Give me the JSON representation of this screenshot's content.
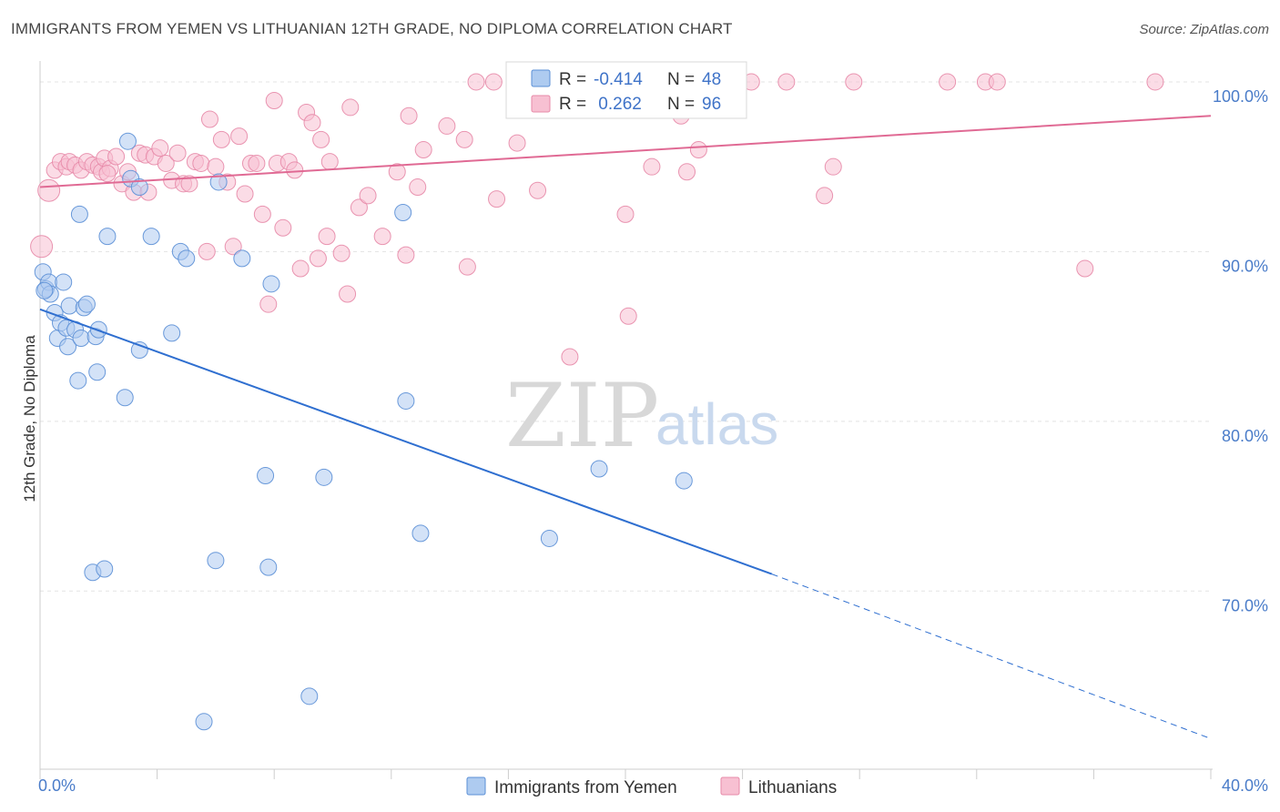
{
  "title": "IMMIGRANTS FROM YEMEN VS LITHUANIAN 12TH GRADE, NO DIPLOMA CORRELATION CHART",
  "source": "Source: ZipAtlas.com",
  "watermark": {
    "zip": "ZIP",
    "atlas": "atlas"
  },
  "colors": {
    "blue_fill": "#aecbf0",
    "blue_stroke": "#5b8fd6",
    "blue_line": "#2f6fd0",
    "pink_fill": "#f7c0d2",
    "pink_stroke": "#e78aa8",
    "pink_line": "#e06a94",
    "tick_text": "#4a7cc9",
    "grid": "#e3e3e3"
  },
  "legend_box": {
    "rows": [
      {
        "r_label": "R =",
        "r_value": "-0.414",
        "n_label": "N =",
        "n_value": "48",
        "color": "blue"
      },
      {
        "r_label": "R =",
        "r_value": " 0.262",
        "n_label": "N =",
        "n_value": "96",
        "color": "pink"
      }
    ]
  },
  "bottom_legend": [
    {
      "label": "Immigrants from Yemen",
      "color": "blue"
    },
    {
      "label": "Lithuanians",
      "color": "pink"
    }
  ],
  "chart_data": {
    "type": "scatter",
    "title": "IMMIGRANTS FROM YEMEN VS LITHUANIAN 12TH GRADE, NO DIPLOMA CORRELATION CHART",
    "xlabel": "",
    "ylabel": "12th Grade, No Diploma",
    "xlim": [
      0,
      40
    ],
    "ylim": [
      59.5,
      101.5
    ],
    "x_tick_labels": [
      "0.0%",
      "40.0%"
    ],
    "y_ticks": [
      70,
      80,
      90,
      100
    ],
    "y_tick_labels": [
      "70.0%",
      "80.0%",
      "90.0%",
      "100.0%"
    ],
    "grid": true,
    "series": [
      {
        "name": "Immigrants from Yemen",
        "color": "blue",
        "r": -0.414,
        "n": 48,
        "trend": {
          "x0": 0.0,
          "y0": 86.6,
          "x1": 25.0,
          "y1": 71.0,
          "dash_to_x": 40.0,
          "dash_to_y": 61.3
        },
        "points": [
          [
            0.1,
            88.8
          ],
          [
            0.2,
            87.8
          ],
          [
            0.3,
            88.2
          ],
          [
            0.35,
            87.5
          ],
          [
            0.5,
            86.4
          ],
          [
            0.6,
            84.9
          ],
          [
            0.7,
            85.8
          ],
          [
            0.8,
            88.2
          ],
          [
            0.9,
            85.5
          ],
          [
            0.95,
            84.4
          ],
          [
            1.0,
            86.8
          ],
          [
            1.2,
            85.4
          ],
          [
            1.3,
            82.4
          ],
          [
            1.35,
            92.2
          ],
          [
            1.4,
            84.9
          ],
          [
            1.5,
            86.7
          ],
          [
            1.6,
            86.9
          ],
          [
            1.8,
            71.1
          ],
          [
            1.9,
            85.0
          ],
          [
            1.95,
            82.9
          ],
          [
            2.0,
            85.4
          ],
          [
            2.2,
            71.3
          ],
          [
            2.3,
            90.9
          ],
          [
            2.9,
            81.4
          ],
          [
            3.0,
            96.5
          ],
          [
            3.1,
            94.3
          ],
          [
            3.4,
            93.8
          ],
          [
            3.4,
            84.2
          ],
          [
            3.8,
            90.9
          ],
          [
            4.5,
            85.2
          ],
          [
            4.8,
            90.0
          ],
          [
            5.0,
            89.6
          ],
          [
            5.6,
            62.3
          ],
          [
            6.0,
            71.8
          ],
          [
            6.1,
            94.1
          ],
          [
            6.9,
            89.6
          ],
          [
            7.7,
            76.8
          ],
          [
            7.8,
            71.4
          ],
          [
            7.9,
            88.1
          ],
          [
            9.2,
            63.8
          ],
          [
            9.7,
            76.7
          ],
          [
            12.4,
            92.3
          ],
          [
            12.5,
            81.2
          ],
          [
            13.0,
            73.4
          ],
          [
            17.4,
            73.1
          ],
          [
            19.1,
            77.2
          ],
          [
            22.0,
            76.5
          ],
          [
            0.15,
            87.7
          ]
        ]
      },
      {
        "name": "Lithuanians",
        "color": "pink",
        "r": 0.262,
        "n": 96,
        "trend": {
          "x0": 0.0,
          "y0": 93.8,
          "x1": 40.0,
          "y1": 98.0
        },
        "points": [
          [
            0.05,
            90.3
          ],
          [
            0.3,
            93.6
          ],
          [
            0.5,
            94.8
          ],
          [
            0.7,
            95.3
          ],
          [
            0.9,
            95.0
          ],
          [
            1.0,
            95.3
          ],
          [
            1.2,
            95.1
          ],
          [
            1.4,
            94.8
          ],
          [
            1.6,
            95.3
          ],
          [
            1.8,
            95.1
          ],
          [
            2.0,
            95.0
          ],
          [
            2.1,
            94.7
          ],
          [
            2.2,
            95.5
          ],
          [
            2.4,
            94.9
          ],
          [
            2.6,
            95.6
          ],
          [
            2.8,
            94.0
          ],
          [
            3.0,
            94.7
          ],
          [
            3.2,
            93.5
          ],
          [
            3.4,
            95.8
          ],
          [
            3.6,
            95.7
          ],
          [
            3.7,
            93.5
          ],
          [
            3.9,
            95.6
          ],
          [
            4.1,
            96.1
          ],
          [
            4.3,
            95.2
          ],
          [
            4.5,
            94.2
          ],
          [
            4.7,
            95.8
          ],
          [
            4.9,
            94.0
          ],
          [
            5.1,
            94.0
          ],
          [
            5.3,
            95.3
          ],
          [
            5.5,
            95.2
          ],
          [
            5.7,
            90.0
          ],
          [
            5.8,
            97.8
          ],
          [
            6.0,
            95.0
          ],
          [
            6.2,
            96.6
          ],
          [
            6.4,
            94.1
          ],
          [
            6.6,
            90.3
          ],
          [
            6.8,
            96.8
          ],
          [
            7.0,
            93.4
          ],
          [
            7.2,
            95.2
          ],
          [
            7.4,
            95.2
          ],
          [
            7.6,
            92.2
          ],
          [
            7.8,
            86.9
          ],
          [
            8.0,
            98.9
          ],
          [
            8.1,
            95.2
          ],
          [
            8.3,
            91.4
          ],
          [
            8.5,
            95.3
          ],
          [
            8.7,
            94.8
          ],
          [
            8.9,
            89.0
          ],
          [
            9.1,
            98.2
          ],
          [
            9.3,
            97.6
          ],
          [
            9.5,
            89.6
          ],
          [
            9.6,
            96.6
          ],
          [
            9.8,
            90.9
          ],
          [
            9.9,
            95.3
          ],
          [
            10.3,
            89.9
          ],
          [
            10.5,
            87.5
          ],
          [
            10.6,
            98.5
          ],
          [
            10.9,
            92.6
          ],
          [
            11.2,
            93.3
          ],
          [
            11.7,
            90.9
          ],
          [
            12.2,
            94.7
          ],
          [
            12.5,
            89.8
          ],
          [
            12.6,
            98.0
          ],
          [
            12.9,
            93.8
          ],
          [
            13.1,
            96.0
          ],
          [
            13.9,
            97.4
          ],
          [
            14.5,
            96.6
          ],
          [
            14.6,
            89.1
          ],
          [
            14.9,
            100.0
          ],
          [
            15.5,
            100.0
          ],
          [
            15.6,
            93.1
          ],
          [
            16.3,
            96.4
          ],
          [
            17.0,
            93.6
          ],
          [
            17.5,
            100.0
          ],
          [
            18.1,
            83.8
          ],
          [
            19.0,
            100.0
          ],
          [
            20.0,
            92.2
          ],
          [
            20.1,
            86.2
          ],
          [
            20.9,
            95.0
          ],
          [
            21.7,
            100.0
          ],
          [
            22.1,
            94.7
          ],
          [
            22.5,
            96.0
          ],
          [
            23.2,
            100.0
          ],
          [
            24.3,
            100.0
          ],
          [
            25.5,
            100.0
          ],
          [
            26.8,
            93.3
          ],
          [
            27.1,
            95.0
          ],
          [
            27.8,
            100.0
          ],
          [
            31.0,
            100.0
          ],
          [
            32.3,
            100.0
          ],
          [
            32.7,
            100.0
          ],
          [
            38.1,
            100.0
          ],
          [
            35.7,
            89.0
          ],
          [
            21.9,
            98.0
          ],
          [
            23.0,
            100.0
          ],
          [
            2.3,
            94.6
          ]
        ]
      }
    ]
  }
}
